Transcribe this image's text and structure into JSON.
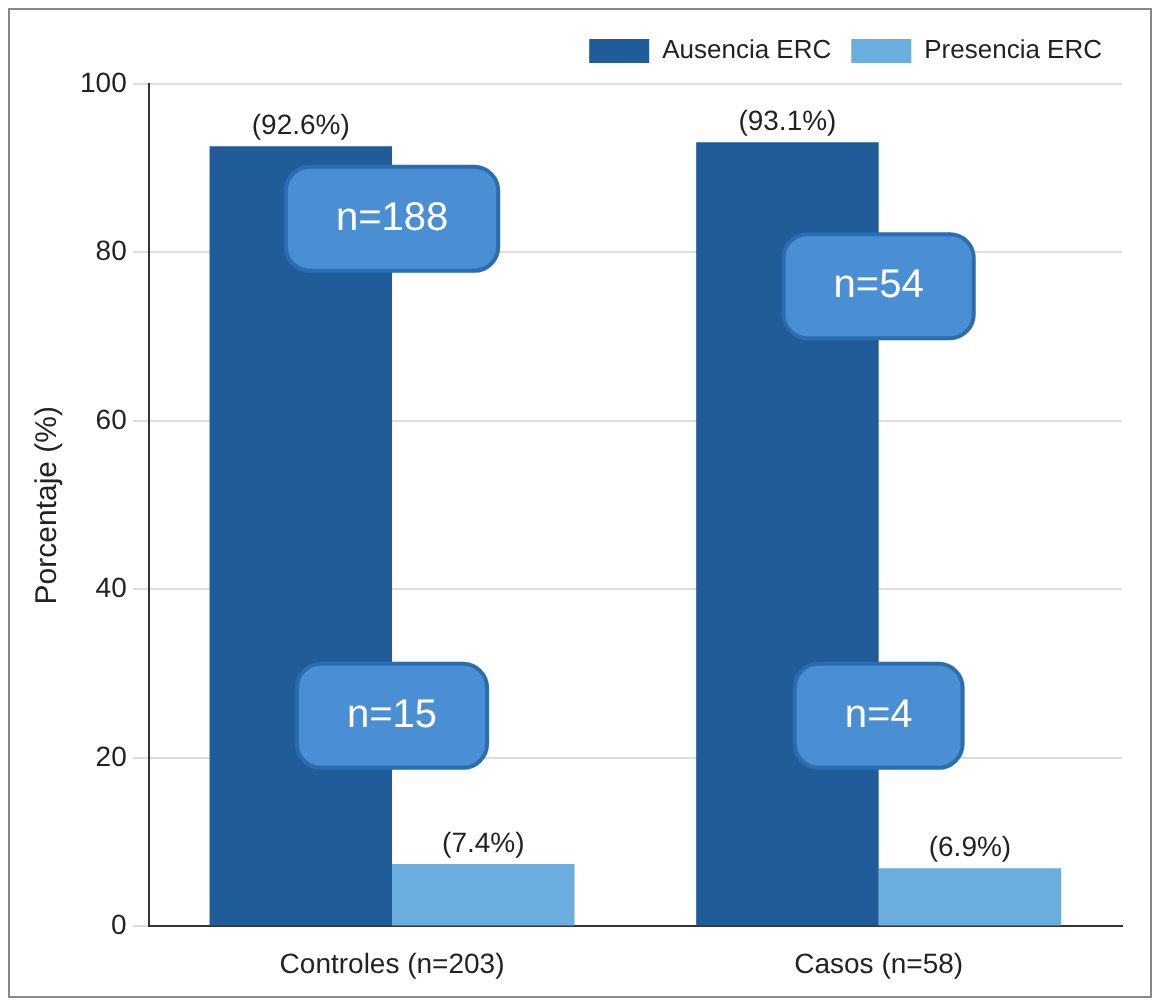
{
  "chart_data": {
    "type": "bar",
    "ylabel": "Porcentaje (%)",
    "categories": [
      "Controles (n=203)",
      "Casos (n=58)"
    ],
    "series": [
      {
        "name": "Ausencia ERC",
        "color": "#1f5c99",
        "values": [
          92.6,
          93.1
        ],
        "value_labels": [
          "(92.6%)",
          "(93.1%)"
        ]
      },
      {
        "name": "Presencia ERC",
        "color": "#6aaee0",
        "values": [
          7.4,
          6.9
        ],
        "value_labels": [
          "(7.4%)",
          "(6.9%)"
        ]
      }
    ],
    "ylim": [
      0,
      100
    ],
    "yticks": [
      0,
      20,
      40,
      60,
      80,
      100
    ],
    "grid": "y",
    "legend": "top right",
    "annotations": [
      {
        "text": "n=188",
        "x": "Controles (n=203)",
        "y": 84
      },
      {
        "text": "n=54",
        "x": "Casos (n=58)",
        "y": 76
      },
      {
        "text": "n=15",
        "x": "Controles (n=203)",
        "y": 25
      },
      {
        "text": "n=4",
        "x": "Casos (n=58)",
        "y": 25
      }
    ]
  }
}
